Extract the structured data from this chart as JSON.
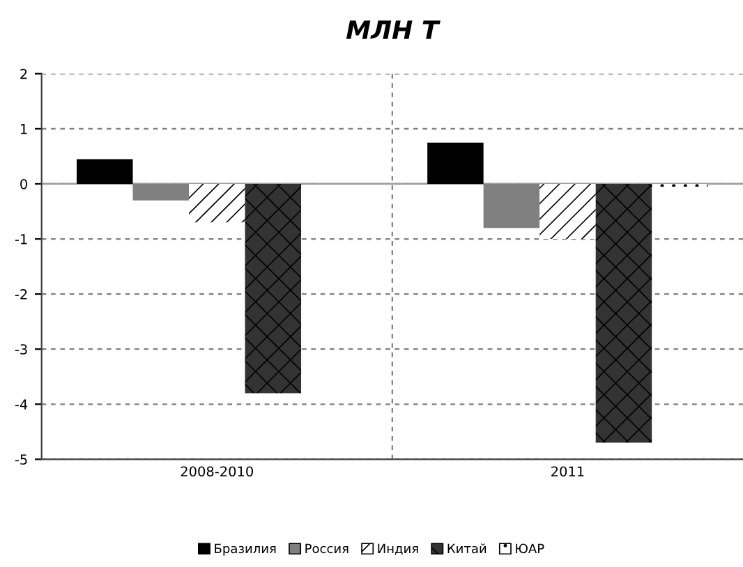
{
  "chart_data": {
    "type": "bar",
    "title": "МЛН Т",
    "categories": [
      "2008-2010",
      "2011"
    ],
    "series": [
      {
        "name": "Бразилия",
        "color": "#000000",
        "values": [
          0.45,
          0.75
        ]
      },
      {
        "name": "Россия",
        "color": "#808080",
        "values": [
          -0.3,
          -0.8
        ]
      },
      {
        "name": "Индия",
        "color": "#ffffff",
        "values": [
          -0.7,
          -1.0
        ]
      },
      {
        "name": "Китай",
        "color": "#333333",
        "values": [
          -3.8,
          -4.7
        ]
      },
      {
        "name": "ЮАР",
        "color": "#ffffff",
        "values": [
          0,
          -0.05
        ]
      }
    ],
    "ylim": [
      -5,
      2
    ],
    "yticks": [
      -5,
      -4,
      -3,
      -2,
      -1,
      0,
      1,
      2
    ],
    "grid": true,
    "legend": "bottom"
  }
}
